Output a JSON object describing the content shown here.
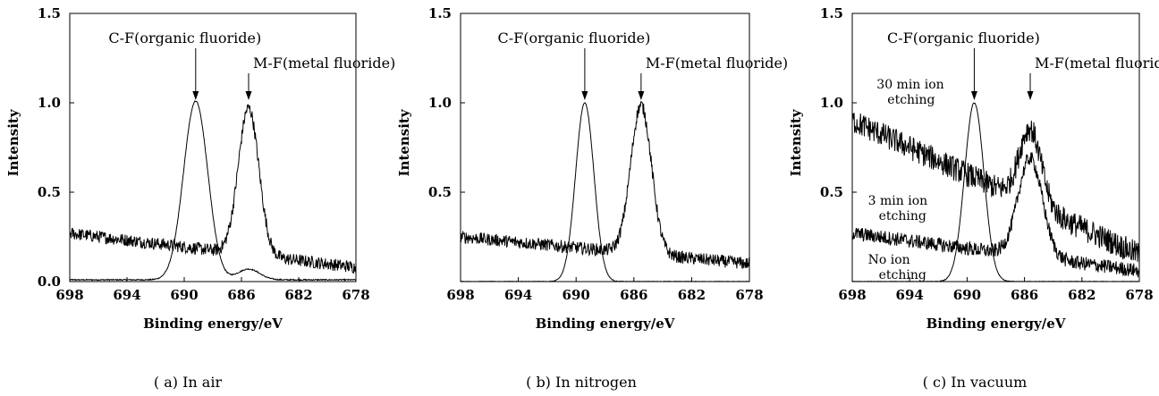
{
  "chart_data": [
    {
      "type": "line",
      "caption": "( a)  In air",
      "xlabel": "Binding energy/eV",
      "ylabel": "Intensity",
      "xlim": [
        698,
        678
      ],
      "ylim": [
        0,
        1.5
      ],
      "x_ticks": [
        698,
        694,
        690,
        686,
        682,
        678
      ],
      "y_ticks": [
        0.0,
        0.5,
        1.0,
        1.5
      ],
      "y_tick_labels": [
        "0.0",
        "0.5",
        "1.0",
        "1.5"
      ],
      "annotations": [
        {
          "text": "C-F(organic fluoride)",
          "x": 689.2,
          "y": 1.0
        },
        {
          "text": "M-F(metal fluoride)",
          "x": 685.5,
          "y": 1.0
        }
      ],
      "series": [
        {
          "shape": "spectrum",
          "peaks": [
            {
              "x": 689.2,
              "y": 1.0,
              "w": 1.0
            }
          ],
          "extra": [
            {
              "x": 685.5,
              "y": 0.06,
              "w": 0.9
            }
          ],
          "baseline": 0.01,
          "noise": 0.003,
          "color": "#000000"
        },
        {
          "shape": "spectrum",
          "peaks": [
            {
              "x": 685.5,
              "y": 0.82,
              "w": 0.85
            }
          ],
          "extra": [
            {
              "x": 689.2,
              "y": 0.0,
              "w": 1
            }
          ],
          "baseline_from": 0.27,
          "baseline_to": 0.08,
          "noise": 0.035,
          "color": "#000000"
        }
      ]
    },
    {
      "type": "line",
      "caption": "( b)  In nitrogen",
      "xlabel": "Binding energy/eV",
      "ylabel": "Intensity",
      "xlim": [
        698,
        678
      ],
      "ylim": [
        0,
        1.5
      ],
      "x_ticks": [
        698,
        694,
        690,
        686,
        682,
        678
      ],
      "y_ticks": [
        0.5,
        1.0,
        1.5
      ],
      "y_tick_labels": [
        "0.5",
        "1.0",
        "1.5"
      ],
      "annotations": [
        {
          "text": "C-F(organic fluoride)",
          "x": 689.4,
          "y": 1.0
        },
        {
          "text": "M-F(metal fluoride)",
          "x": 685.5,
          "y": 1.0
        }
      ],
      "series": [
        {
          "shape": "spectrum",
          "peaks": [
            {
              "x": 689.4,
              "y": 1.0,
              "w": 0.75
            }
          ],
          "baseline": 0.0,
          "noise": 0.002,
          "color": "#000000"
        },
        {
          "shape": "spectrum",
          "peaks": [
            {
              "x": 685.5,
              "y": 0.83,
              "w": 0.85
            }
          ],
          "baseline_from": 0.25,
          "baseline_to": 0.1,
          "noise": 0.035,
          "color": "#000000"
        }
      ]
    },
    {
      "type": "line",
      "caption": "( c)  In vacuum",
      "xlabel": "Binding energy/eV",
      "ylabel": "Intensity",
      "xlim": [
        698,
        678
      ],
      "ylim": [
        0,
        1.5
      ],
      "x_ticks": [
        698,
        694,
        690,
        686,
        682,
        678
      ],
      "y_ticks": [
        0.5,
        1.0,
        1.5
      ],
      "y_tick_labels": [
        "0.5",
        "1.0",
        "1.5"
      ],
      "annotations": [
        {
          "text": "C-F(organic fluoride)",
          "x": 689.5,
          "y": 1.0
        },
        {
          "text": "M-F(metal fluoride)",
          "x": 685.6,
          "y": 1.0
        }
      ],
      "series": [
        {
          "name": "30 min ion etching",
          "shape": "spectrum",
          "peaks": [
            {
              "x": 685.6,
              "y": 0.42,
              "w": 0.9
            }
          ],
          "baseline_from": 0.9,
          "baseline_to": 0.15,
          "noise": 0.07,
          "color": "#000000"
        },
        {
          "name": "3 min ion etching",
          "shape": "spectrum",
          "peaks": [
            {
              "x": 685.6,
              "y": 0.55,
              "w": 1.0
            }
          ],
          "baseline_from": 0.27,
          "baseline_to": 0.06,
          "noise": 0.04,
          "color": "#000000"
        },
        {
          "name": "No ion etching",
          "shape": "spectrum",
          "peaks": [
            {
              "x": 689.5,
              "y": 1.0,
              "w": 0.8
            }
          ],
          "baseline": 0.0,
          "noise": 0.002,
          "color": "#000000"
        }
      ],
      "series_labels": [
        {
          "text": [
            "30 min ion",
            "etching"
          ],
          "x": 696.3,
          "y": 1.08
        },
        {
          "text": [
            "3 min ion",
            "etching"
          ],
          "x": 696.9,
          "y": 0.43
        },
        {
          "text": [
            "No ion",
            "etching"
          ],
          "x": 696.9,
          "y": 0.1
        }
      ]
    }
  ]
}
